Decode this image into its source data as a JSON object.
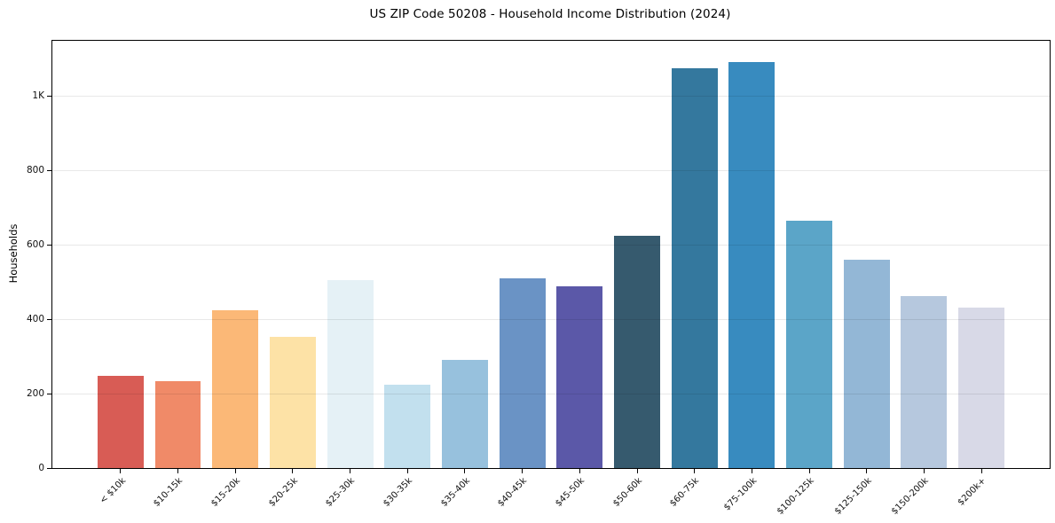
{
  "chart_data": {
    "type": "bar",
    "title": "US ZIP Code 50208 - Household Income Distribution (2024)",
    "xlabel": "",
    "ylabel": "Households",
    "categories": [
      "< $10k",
      "$10-15k",
      "$15-20k",
      "$20-25k",
      "$25-30k",
      "$30-35k",
      "$35-40k",
      "$40-45k",
      "$45-50k",
      "$50-60k",
      "$60-75k",
      "$75-100k",
      "$100-125k",
      "$125-150k",
      "$150-200k",
      "$200k+"
    ],
    "values": [
      248,
      233,
      425,
      352,
      505,
      224,
      290,
      510,
      488,
      625,
      1075,
      1090,
      665,
      560,
      462,
      430
    ],
    "bar_colors": [
      "#d85c55",
      "#f08a68",
      "#fbb877",
      "#fde2a6",
      "#e5f1f6",
      "#c2e0ee",
      "#97c1dd",
      "#6a93c5",
      "#5b58a8",
      "#365a6e",
      "#34789e",
      "#388bbf",
      "#5ba5c8",
      "#93b7d6",
      "#b6c8de",
      "#d8d9e7"
    ],
    "ylim": [
      0,
      1148
    ],
    "xlim": [
      -1.19,
      16.19
    ],
    "bar_width_fraction": 0.8,
    "yticks": [
      {
        "v": 0,
        "label": "0"
      },
      {
        "v": 200,
        "label": "200"
      },
      {
        "v": 400,
        "label": "400"
      },
      {
        "v": 600,
        "label": "600"
      },
      {
        "v": 800,
        "label": "800"
      },
      {
        "v": 1000,
        "label": "1K"
      }
    ],
    "grid": "horizontal",
    "legend": "none",
    "background": "#ffffff",
    "axis_color": "#000000"
  }
}
